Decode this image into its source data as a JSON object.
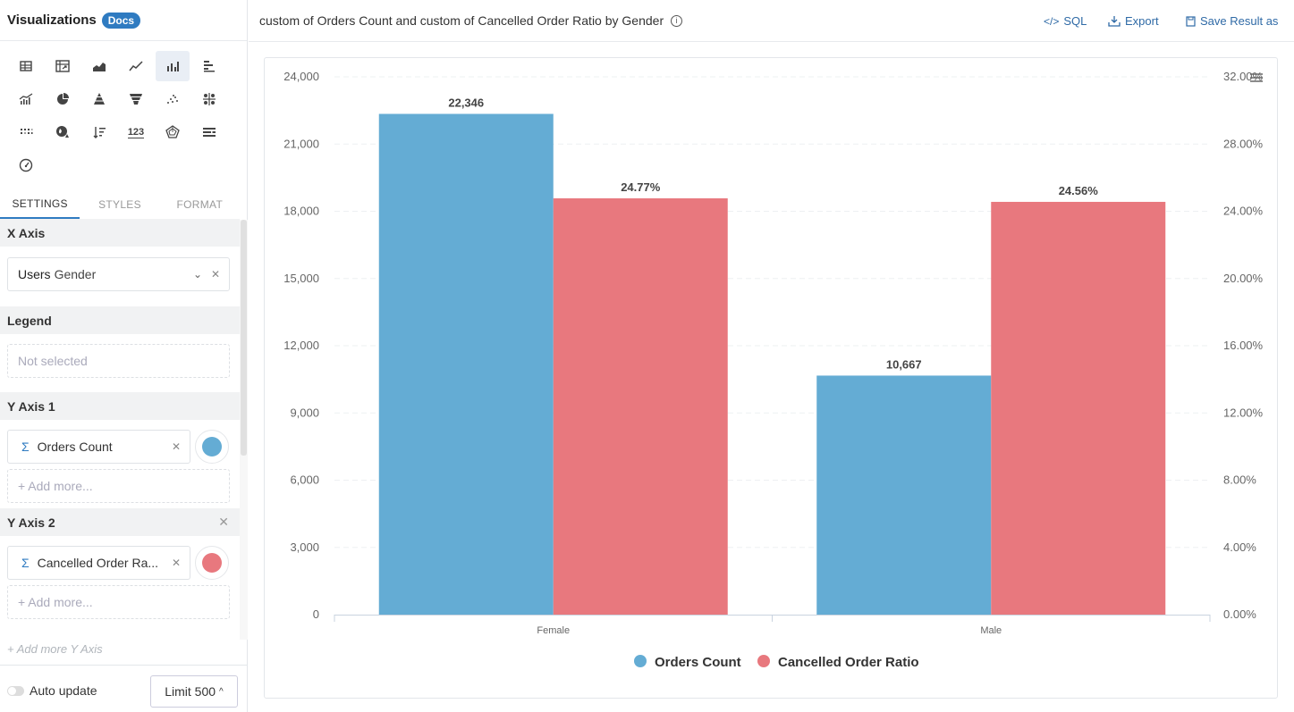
{
  "left_panel": {
    "title": "Visualizations",
    "docs_badge": "Docs",
    "viz_types": [
      "table-icon",
      "pivot-table-icon",
      "area-chart-icon",
      "line-chart-icon",
      "column-chart-icon",
      "bar-chart-icon",
      "combo-chart-icon",
      "pie-chart-icon",
      "pyramid-chart-icon",
      "funnel-chart-icon",
      "scatter-chart-icon",
      "bubble-chart-icon",
      "heatmap-icon",
      "map-icon",
      "sorted-list-icon",
      "number-123-icon",
      "radar-chart-icon",
      "bullet-chart-icon",
      "gauge-icon"
    ],
    "number_icon_text": "123",
    "tabs": [
      "SETTINGS",
      "STYLES",
      "FORMAT"
    ],
    "x_axis": {
      "label": "X Axis",
      "field_prefix": "Users",
      "field_name": "Gender"
    },
    "legend": {
      "label": "Legend",
      "placeholder": "Not selected"
    },
    "y_axis_1": {
      "label": "Y Axis 1",
      "field": "Orders Count",
      "color": "#64acd4",
      "add_more": "+ Add more..."
    },
    "y_axis_2": {
      "label": "Y Axis 2",
      "field": "Cancelled Order Ra...",
      "color": "#e8787e",
      "add_more": "+ Add more..."
    },
    "add_more_y": "+ Add more Y Axis",
    "auto_update": "Auto update",
    "limit": "Limit 500"
  },
  "header": {
    "title": "custom of Orders Count and custom of Cancelled Order Ratio by Gender",
    "sql": "SQL",
    "export": "Export",
    "save": "Save Result as"
  },
  "chart_data": {
    "type": "bar",
    "categories": [
      "Female",
      "Male"
    ],
    "series": [
      {
        "name": "Orders Count",
        "axis": "left",
        "color": "#64acd4",
        "values": [
          22346,
          10667
        ],
        "labels": [
          "22,346",
          "10,667"
        ]
      },
      {
        "name": "Cancelled Order Ratio",
        "axis": "right",
        "color": "#e8787e",
        "values": [
          24.77,
          24.56
        ],
        "labels": [
          "24.77%",
          "24.56%"
        ]
      }
    ],
    "y_left": {
      "min": 0,
      "max": 24000,
      "ticks": [
        "0",
        "3,000",
        "6,000",
        "9,000",
        "12,000",
        "15,000",
        "18,000",
        "21,000",
        "24,000"
      ]
    },
    "y_right": {
      "min": 0,
      "max": 32,
      "ticks": [
        "0.00%",
        "4.00%",
        "8.00%",
        "12.00%",
        "16.00%",
        "20.00%",
        "24.00%",
        "28.00%",
        "32.00%"
      ]
    },
    "legend_position": "bottom",
    "grid": true
  }
}
